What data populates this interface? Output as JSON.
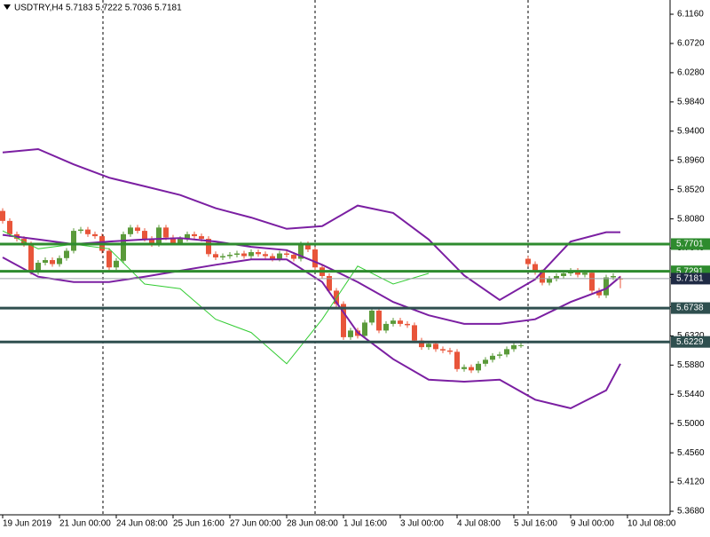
{
  "chart_data": {
    "type": "candlestick",
    "title": "USDTRY,H4  5.7183 5.7222 5.7036 5.7181",
    "xlim": [
      -0.375,
      94
    ],
    "ylim": [
      5.3627,
      6.1374
    ],
    "xticks": [
      {
        "value": 0,
        "label": "19 Jun 2019"
      },
      {
        "value": 8,
        "label": "21 Jun 00:00"
      },
      {
        "value": 16,
        "label": "24 Jun 08:00"
      },
      {
        "value": 24,
        "label": "25 Jun 16:00"
      },
      {
        "value": 32,
        "label": "27 Jun 00:00"
      },
      {
        "value": 40,
        "label": "28 Jun 08:00"
      },
      {
        "value": 48,
        "label": "1 Jul 16:00"
      },
      {
        "value": 56,
        "label": "3 Jul 00:00"
      },
      {
        "value": 64,
        "label": "4 Jul 08:00"
      },
      {
        "value": 72,
        "label": "5 Jul 16:00"
      },
      {
        "value": 80,
        "label": "9 Jul 00:00"
      },
      {
        "value": 88,
        "label": "10 Jul 08:00"
      }
    ],
    "yticks": [
      {
        "value": 6.116,
        "label": "6.1160"
      },
      {
        "value": 6.072,
        "label": "6.0720"
      },
      {
        "value": 6.028,
        "label": "6.0280"
      },
      {
        "value": 5.984,
        "label": "5.9840"
      },
      {
        "value": 5.94,
        "label": "5.9400"
      },
      {
        "value": 5.896,
        "label": "5.8960"
      },
      {
        "value": 5.852,
        "label": "5.8520"
      },
      {
        "value": 5.808,
        "label": "5.8080"
      },
      {
        "value": 5.764,
        "label": "5.7640"
      },
      {
        "value": 5.72,
        "label": "5.7200"
      },
      {
        "value": 5.676,
        "label": "5.6760"
      },
      {
        "value": 5.632,
        "label": "5.6320"
      },
      {
        "value": 5.588,
        "label": "5.5880"
      },
      {
        "value": 5.544,
        "label": "5.5440"
      },
      {
        "value": 5.5,
        "label": "5.5000"
      },
      {
        "value": 5.456,
        "label": "5.4560"
      },
      {
        "value": 5.412,
        "label": "5.4120"
      },
      {
        "value": 5.368,
        "label": "5.3680"
      }
    ],
    "up_color": "#5a9a3a",
    "down_color": "#e8553a",
    "open": [
      5.82,
      5.805,
      5.785,
      5.778,
      5.77,
      5.728,
      5.742,
      5.746,
      5.74,
      5.749,
      5.76,
      5.79,
      5.792,
      5.785,
      5.782,
      5.76,
      5.735,
      5.745,
      5.785,
      5.795,
      5.79,
      5.778,
      5.77,
      5.795,
      5.78,
      5.772,
      5.778,
      5.785,
      5.782,
      5.778,
      5.755,
      5.75,
      5.752,
      5.754,
      5.756,
      5.752,
      5.758,
      5.755,
      5.752,
      5.748,
      5.756,
      5.754,
      5.748,
      5.77,
      5.762,
      5.735,
      5.722,
      5.7,
      5.68,
      5.63,
      5.64,
      5.632,
      5.652,
      5.67,
      5.64,
      5.65,
      5.655,
      5.65,
      5.648,
      5.625,
      5.615,
      5.62,
      5.612,
      5.61,
      5.608,
      5.582,
      5.585,
      5.58,
      5.59,
      5.596,
      5.602,
      5.604,
      5.612,
      5.618,
      5.748,
      5.74,
      5.728,
      5.712,
      5.718,
      5.722,
      5.726,
      5.73,
      5.724,
      5.727,
      5.7,
      5.693,
      5.72,
      5.7183
    ],
    "high": [
      5.824,
      5.809,
      5.789,
      5.782,
      5.774,
      5.746,
      5.75,
      5.75,
      5.753,
      5.764,
      5.794,
      5.796,
      5.796,
      5.789,
      5.786,
      5.764,
      5.749,
      5.789,
      5.799,
      5.799,
      5.794,
      5.782,
      5.799,
      5.799,
      5.784,
      5.782,
      5.789,
      5.789,
      5.786,
      5.782,
      5.759,
      5.756,
      5.758,
      5.76,
      5.76,
      5.762,
      5.762,
      5.759,
      5.756,
      5.76,
      5.76,
      5.758,
      5.774,
      5.774,
      5.766,
      5.739,
      5.726,
      5.704,
      5.684,
      5.644,
      5.644,
      5.656,
      5.674,
      5.674,
      5.654,
      5.659,
      5.659,
      5.654,
      5.652,
      5.629,
      5.624,
      5.624,
      5.616,
      5.614,
      5.612,
      5.589,
      5.589,
      5.594,
      5.6,
      5.606,
      5.608,
      5.616,
      5.622,
      5.622,
      5.752,
      5.744,
      5.732,
      5.722,
      5.726,
      5.73,
      5.734,
      5.734,
      5.731,
      5.731,
      5.704,
      5.724,
      5.726,
      5.7222
    ],
    "low": [
      5.801,
      5.781,
      5.774,
      5.766,
      5.724,
      5.724,
      5.738,
      5.736,
      5.736,
      5.745,
      5.756,
      5.786,
      5.781,
      5.778,
      5.756,
      5.731,
      5.731,
      5.741,
      5.781,
      5.786,
      5.774,
      5.766,
      5.766,
      5.776,
      5.768,
      5.768,
      5.774,
      5.778,
      5.774,
      5.751,
      5.746,
      5.746,
      5.748,
      5.75,
      5.748,
      5.748,
      5.751,
      5.748,
      5.744,
      5.744,
      5.75,
      5.744,
      5.744,
      5.758,
      5.731,
      5.718,
      5.696,
      5.676,
      5.626,
      5.626,
      5.628,
      5.628,
      5.648,
      5.636,
      5.636,
      5.646,
      5.646,
      5.644,
      5.621,
      5.611,
      5.611,
      5.608,
      5.606,
      5.604,
      5.578,
      5.578,
      5.576,
      5.576,
      5.586,
      5.592,
      5.598,
      5.6,
      5.608,
      5.614,
      5.736,
      5.724,
      5.708,
      5.708,
      5.714,
      5.718,
      5.722,
      5.72,
      5.72,
      5.696,
      5.689,
      5.689,
      5.716,
      5.7036
    ],
    "close": [
      5.805,
      5.785,
      5.778,
      5.77,
      5.728,
      5.742,
      5.746,
      5.74,
      5.749,
      5.76,
      5.79,
      5.792,
      5.785,
      5.782,
      5.76,
      5.735,
      5.745,
      5.785,
      5.795,
      5.79,
      5.778,
      5.77,
      5.795,
      5.78,
      5.772,
      5.778,
      5.785,
      5.782,
      5.778,
      5.755,
      5.75,
      5.752,
      5.754,
      5.756,
      5.752,
      5.758,
      5.755,
      5.752,
      5.748,
      5.756,
      5.754,
      5.748,
      5.77,
      5.762,
      5.735,
      5.722,
      5.7,
      5.68,
      5.63,
      5.64,
      5.632,
      5.652,
      5.67,
      5.64,
      5.65,
      5.655,
      5.65,
      5.648,
      5.625,
      5.615,
      5.62,
      5.612,
      5.61,
      5.608,
      5.582,
      5.585,
      5.58,
      5.59,
      5.596,
      5.602,
      5.604,
      5.612,
      5.618,
      5.618,
      5.74,
      5.728,
      5.712,
      5.718,
      5.722,
      5.726,
      5.73,
      5.724,
      5.727,
      5.7,
      5.693,
      5.72,
      5.722,
      5.7181
    ],
    "lines": [
      {
        "color": "#7b1fa2",
        "width": 2,
        "x": [
          0,
          5,
          10,
          15,
          20,
          25,
          30,
          35,
          40,
          45,
          50,
          55,
          60,
          65,
          70,
          75,
          80,
          85,
          87
        ],
        "values": [
          5.908,
          5.913,
          5.89,
          5.87,
          5.857,
          5.844,
          5.824,
          5.81,
          5.793,
          5.797,
          5.828,
          5.817,
          5.777,
          5.723,
          5.686,
          5.717,
          5.774,
          5.788,
          5.788
        ]
      },
      {
        "color": "#7b1fa2",
        "width": 2,
        "x": [
          0,
          5,
          10,
          15,
          20,
          25,
          30,
          35,
          40,
          45,
          50,
          55,
          60,
          65,
          70,
          75,
          80,
          85,
          87
        ],
        "values": [
          5.784,
          5.777,
          5.77,
          5.774,
          5.777,
          5.779,
          5.774,
          5.766,
          5.761,
          5.739,
          5.713,
          5.683,
          5.663,
          5.65,
          5.65,
          5.657,
          5.683,
          5.703,
          5.721
        ]
      },
      {
        "color": "#7b1fa2",
        "width": 2,
        "x": [
          0,
          5,
          10,
          15,
          20,
          25,
          30,
          35,
          40,
          45,
          50,
          55,
          60,
          65,
          70,
          75,
          80,
          85,
          87
        ],
        "values": [
          5.75,
          5.721,
          5.713,
          5.713,
          5.721,
          5.73,
          5.739,
          5.747,
          5.747,
          5.713,
          5.637,
          5.597,
          5.566,
          5.563,
          5.566,
          5.536,
          5.523,
          5.55,
          5.59
        ]
      },
      {
        "color": "#33cc33",
        "width": 1,
        "x": [
          0,
          5,
          10,
          15,
          20,
          25,
          30,
          35,
          40,
          45,
          50,
          55,
          60
        ],
        "values": [
          5.79,
          5.763,
          5.77,
          5.763,
          5.71,
          5.703,
          5.657,
          5.637,
          5.59,
          5.657,
          5.737,
          5.71,
          5.726
        ]
      }
    ],
    "levels": [
      {
        "value": 5.7701,
        "color": "#2e8b2e"
      },
      {
        "value": 5.7291,
        "color": "#2e8b2e"
      },
      {
        "value": 5.6738,
        "color": "#2f4f4f"
      },
      {
        "value": 5.6229,
        "color": "#2f4f4f"
      }
    ],
    "price": {
      "value": 5.7181,
      "color": "#1f2a44"
    }
  }
}
